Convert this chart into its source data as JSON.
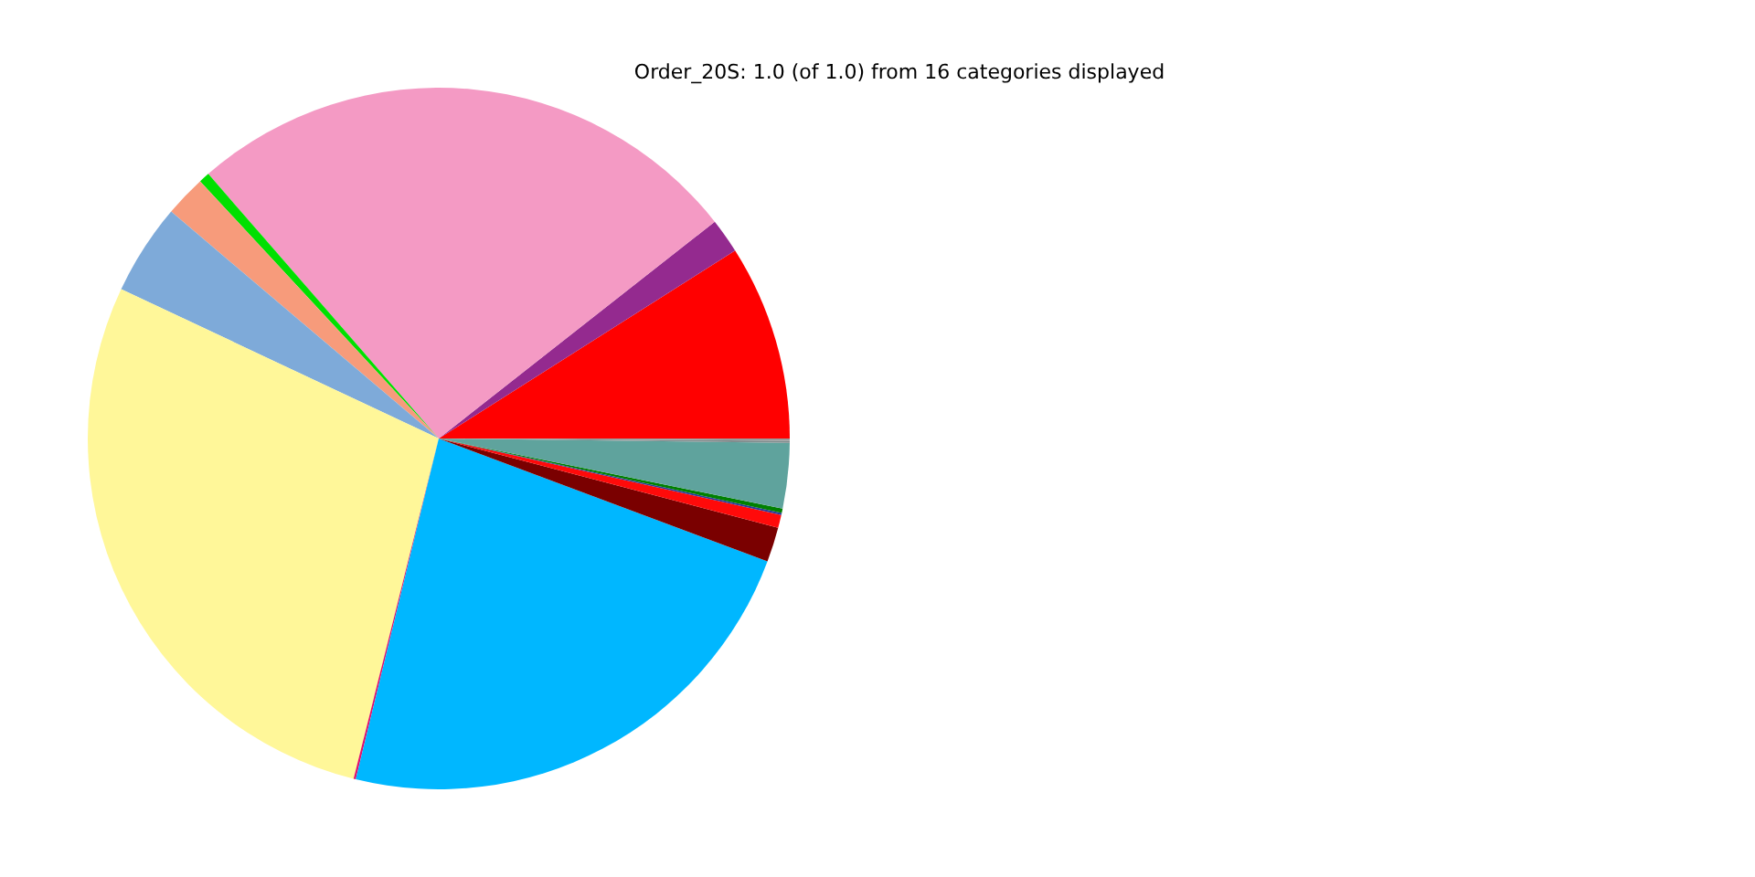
{
  "chart_data": {
    "type": "pie",
    "title": "Order_20S: 1.0 (of 1.0) from 16 categories displayed",
    "categories": [
      null,
      null,
      null,
      null,
      null,
      null,
      null,
      null,
      null,
      null,
      null,
      null,
      null,
      null,
      null,
      null
    ],
    "values": [
      9.0,
      1.6,
      25.8,
      0.5,
      1.9,
      4.2,
      28.1,
      0.1,
      23.1,
      1.6,
      0.6,
      0.1,
      0.2,
      3.0,
      0.1,
      0.1
    ],
    "colors": [
      "#ff0000",
      "#942a8f",
      "#f49ac4",
      "#00e000",
      "#f79b7b",
      "#7eaad9",
      "#fff799",
      "#e0116b",
      "#00b7ff",
      "#7a0000",
      "#ff0a0a",
      "#2a3a9a",
      "#008000",
      "#5fa39d",
      "#7f8c8d",
      "#9a9a9a"
    ]
  }
}
